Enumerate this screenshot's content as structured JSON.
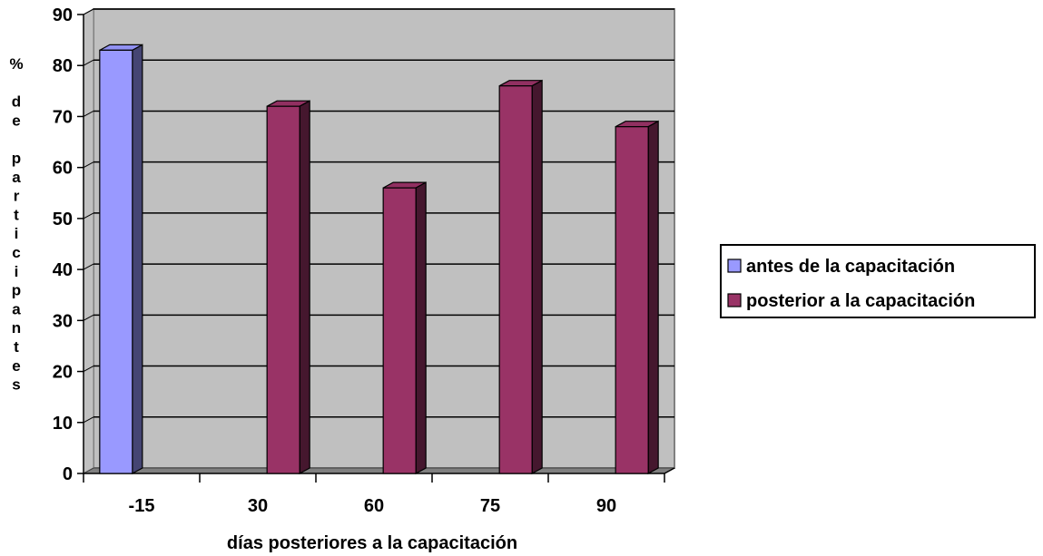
{
  "chart_data": {
    "type": "bar",
    "title": "",
    "xlabel": "días posteriores a la capacitación",
    "ylabel": "% de participantes",
    "ylabel_lines": [
      "%",
      "",
      "d",
      "e",
      "",
      "p",
      "a",
      "r",
      "t",
      "i",
      "c",
      "i",
      "p",
      "a",
      "n",
      "t",
      "e",
      "s"
    ],
    "categories": [
      "-15",
      "30",
      "60",
      "75",
      "90"
    ],
    "ylim": [
      0,
      90
    ],
    "y_ticks": [
      "0",
      "10",
      "20",
      "30",
      "40",
      "50",
      "60",
      "70",
      "80",
      "90"
    ],
    "grid": true,
    "legend_position": "right",
    "series": [
      {
        "name": "antes de la capacitación",
        "color": "#9999ff",
        "values": [
          83,
          null,
          null,
          null,
          null
        ]
      },
      {
        "name": "posterior a la capacitación",
        "color": "#993366",
        "values": [
          null,
          72,
          56,
          76,
          68
        ]
      }
    ]
  }
}
